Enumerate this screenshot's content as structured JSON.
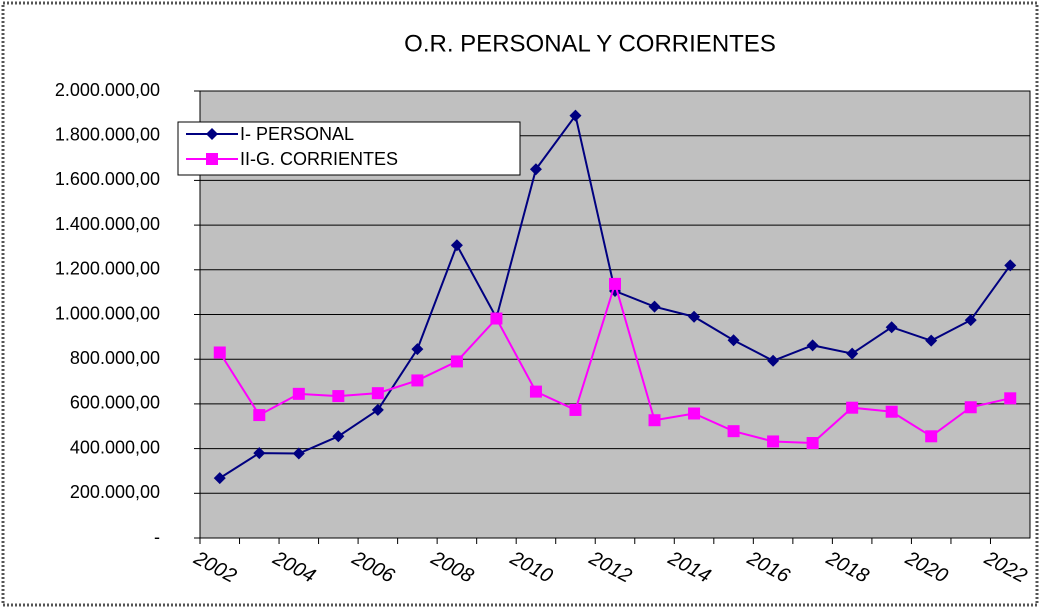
{
  "chart_data": {
    "type": "line",
    "title": "O.R. PERSONAL Y CORRIENTES",
    "categories": [
      "2002",
      null,
      "2004",
      null,
      "2006",
      null,
      "2008",
      null,
      "2010",
      null,
      "2012",
      null,
      "2014",
      null,
      "2016",
      null,
      "2018",
      null,
      "2020",
      null,
      "2022"
    ],
    "series": [
      {
        "name": "I- PERSONAL",
        "color": "#000080",
        "marker": "diamond",
        "values": [
          268000,
          380000,
          378000,
          455000,
          573000,
          845000,
          1310000,
          985000,
          1650000,
          1890000,
          1105000,
          1035000,
          990000,
          885000,
          793000,
          862000,
          825000,
          943000,
          883000,
          975000,
          1220000
        ]
      },
      {
        "name": "II-G. CORRIENTES",
        "color": "#ff00ff",
        "marker": "square",
        "values": [
          830000,
          550000,
          645000,
          635000,
          648000,
          705000,
          790000,
          982000,
          655000,
          573000,
          1137000,
          527000,
          557000,
          478000,
          432000,
          425000,
          583000,
          565000,
          455000,
          585000,
          625000
        ]
      }
    ],
    "ylim": [
      0,
      2000000
    ],
    "yticks": [
      {
        "value": 0,
        "label": "-"
      },
      {
        "value": 200000,
        "label": "200.000,00"
      },
      {
        "value": 400000,
        "label": "400.000,00"
      },
      {
        "value": 600000,
        "label": "600.000,00"
      },
      {
        "value": 800000,
        "label": "800.000,00"
      },
      {
        "value": 1000000,
        "label": "1.000.000,00"
      },
      {
        "value": 1200000,
        "label": "1.200.000,00"
      },
      {
        "value": 1400000,
        "label": "1.400.000,00"
      },
      {
        "value": 1600000,
        "label": "1.600.000,00"
      },
      {
        "value": 1800000,
        "label": "1.800.000,00"
      },
      {
        "value": 2000000,
        "label": "2.000.000,00"
      }
    ],
    "grid": true,
    "plot_background": "#c0c0c0"
  }
}
